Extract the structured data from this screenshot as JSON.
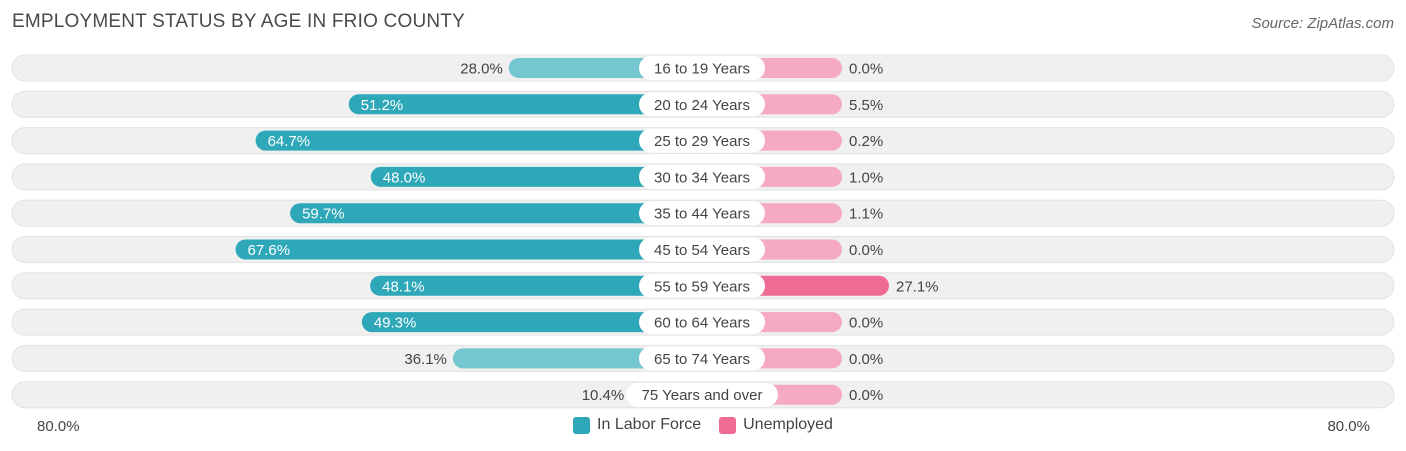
{
  "title": "EMPLOYMENT STATUS BY AGE IN FRIO COUNTY",
  "source": "Source: ZipAtlas.com",
  "colors": {
    "labor_force": "#2ea8b8",
    "labor_force_light": "#74c6cf",
    "unemployed": "#ef6b93",
    "unemployed_light": "#f5a9c2",
    "row_background": "#f0f0f0"
  },
  "axis": {
    "left_label": "80.0%",
    "right_label": "80.0%"
  },
  "legend": [
    {
      "label": "In Labor Force",
      "color": "#2ea8b8"
    },
    {
      "label": "Unemployed",
      "color": "#ef6b93"
    }
  ],
  "chart_data": {
    "type": "bar",
    "orientation": "horizontal-diverging",
    "xlim": [
      -80,
      80
    ],
    "categories": [
      "16 to 19 Years",
      "20 to 24 Years",
      "25 to 29 Years",
      "30 to 34 Years",
      "35 to 44 Years",
      "45 to 54 Years",
      "55 to 59 Years",
      "60 to 64 Years",
      "65 to 74 Years",
      "75 Years and over"
    ],
    "series": [
      {
        "name": "In Labor Force",
        "values": [
          28.0,
          51.2,
          64.7,
          48.0,
          59.7,
          67.6,
          48.1,
          49.3,
          36.1,
          10.4
        ],
        "labels": [
          "28.0%",
          "51.2%",
          "64.7%",
          "48.0%",
          "59.7%",
          "67.6%",
          "48.1%",
          "49.3%",
          "36.1%",
          "10.4%"
        ]
      },
      {
        "name": "Unemployed",
        "values": [
          0.0,
          5.5,
          0.2,
          1.0,
          1.1,
          0.0,
          27.1,
          0.0,
          0.0,
          0.0
        ],
        "labels": [
          "0.0%",
          "5.5%",
          "0.2%",
          "1.0%",
          "1.1%",
          "0.0%",
          "27.1%",
          "0.0%",
          "0.0%",
          "0.0%"
        ]
      }
    ],
    "legend_position": "bottom-center",
    "grid": false
  }
}
